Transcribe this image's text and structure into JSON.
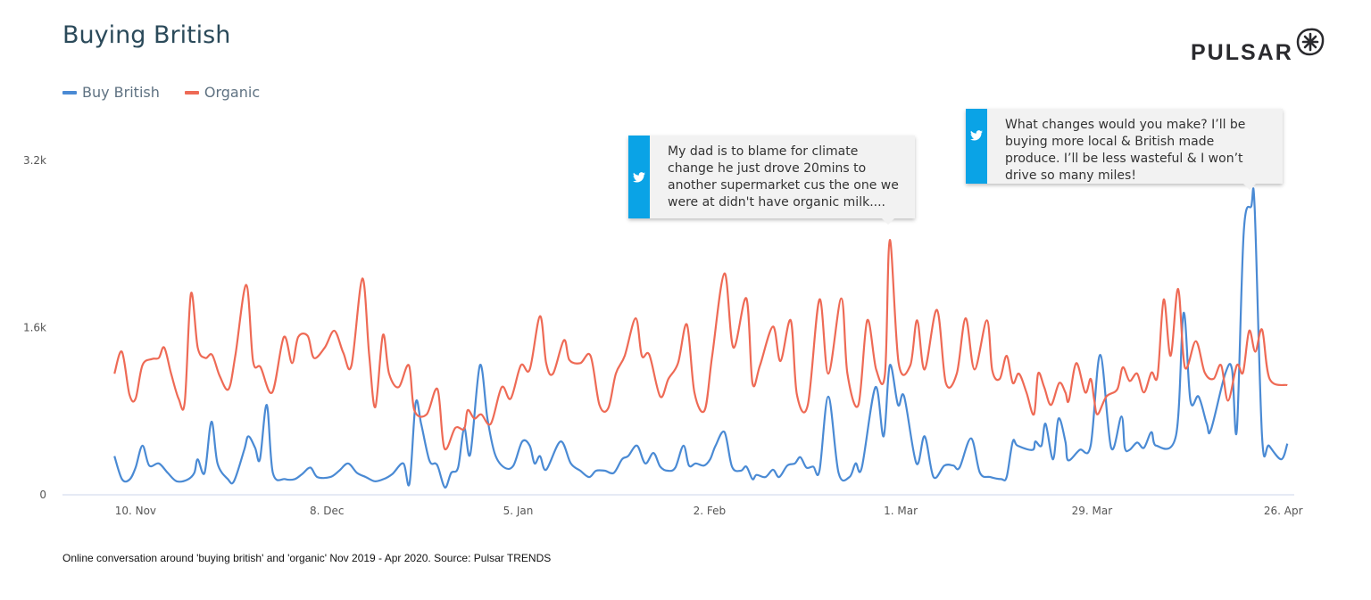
{
  "header": {
    "title": "Buying British",
    "logo_text": "PULSAR"
  },
  "legend": [
    {
      "label": "Buy British",
      "color": "#4a8ad4"
    },
    {
      "label": "Organic",
      "color": "#ee6a55"
    }
  ],
  "tooltips": [
    {
      "icon": "twitter-icon",
      "text": "My dad is to blame for climate change he just drove 20mins to another supermarket cus the one we were at didn't have organic milk...."
    },
    {
      "icon": "twitter-icon",
      "text": "What changes would you make? I’ll be buying more local & British made produce. I’ll be less wasteful & I won’t drive so many miles!"
    }
  ],
  "caption": "Online conversation around 'buying british' and 'organic'  Nov 2019 - Apr 2020. Source: Pulsar TRENDS",
  "chart_data": {
    "type": "line",
    "title": "Buying British",
    "xlabel": "",
    "ylabel": "",
    "x_unit": "days since 10 Nov 2019",
    "xlim": [
      -10.7,
      169.6
    ],
    "ylim": [
      0,
      3200
    ],
    "grid": false,
    "legend_position": "top-left",
    "x_ticks": [
      {
        "value": 0,
        "label": "10. Nov"
      },
      {
        "value": 28,
        "label": "8. Dec"
      },
      {
        "value": 56,
        "label": "5. Jan"
      },
      {
        "value": 84,
        "label": "2. Feb"
      },
      {
        "value": 112,
        "label": "1. Mar"
      },
      {
        "value": 140,
        "label": "29. Mar"
      },
      {
        "value": 168,
        "label": "26. Apr"
      }
    ],
    "y_ticks": [
      {
        "value": 0,
        "label": "0"
      },
      {
        "value": 1600,
        "label": "1.6k"
      },
      {
        "value": 3200,
        "label": "3.2k"
      }
    ],
    "series": [
      {
        "name": "Buy British",
        "color": "#4a8ad4",
        "points": [
          [
            -3.1,
            370
          ],
          [
            -2.0,
            150
          ],
          [
            -0.9,
            145
          ],
          [
            0,
            260
          ],
          [
            1.0,
            470
          ],
          [
            2.0,
            280
          ],
          [
            3.4,
            300
          ],
          [
            4.7,
            210
          ],
          [
            6.0,
            130
          ],
          [
            7.6,
            145
          ],
          [
            8.6,
            210
          ],
          [
            9.1,
            340
          ],
          [
            10.1,
            210
          ],
          [
            11.1,
            700
          ],
          [
            12.0,
            300
          ],
          [
            13.5,
            150
          ],
          [
            14.4,
            130
          ],
          [
            15.9,
            430
          ],
          [
            16.5,
            560
          ],
          [
            17.5,
            450
          ],
          [
            18.2,
            340
          ],
          [
            19.2,
            860
          ],
          [
            20.1,
            210
          ],
          [
            21.9,
            150
          ],
          [
            23.3,
            150
          ],
          [
            24.4,
            200
          ],
          [
            25.6,
            260
          ],
          [
            26.6,
            170
          ],
          [
            28.5,
            170
          ],
          [
            29.8,
            230
          ],
          [
            31.1,
            300
          ],
          [
            32.4,
            210
          ],
          [
            33.7,
            170
          ],
          [
            35.0,
            130
          ],
          [
            36.3,
            150
          ],
          [
            37.6,
            200
          ],
          [
            39.2,
            300
          ],
          [
            40.1,
            110
          ],
          [
            41.0,
            880
          ],
          [
            41.8,
            680
          ],
          [
            43.0,
            330
          ],
          [
            43.9,
            300
          ],
          [
            44.3,
            260
          ],
          [
            45.3,
            70
          ],
          [
            46.2,
            210
          ],
          [
            47.2,
            260
          ],
          [
            48.1,
            640
          ],
          [
            49.0,
            390
          ],
          [
            50.4,
            1240
          ],
          [
            51.5,
            730
          ],
          [
            52.6,
            390
          ],
          [
            54.0,
            260
          ],
          [
            55.3,
            280
          ],
          [
            56.6,
            510
          ],
          [
            57.7,
            470
          ],
          [
            58.4,
            300
          ],
          [
            59.2,
            370
          ],
          [
            60.1,
            240
          ],
          [
            62.2,
            510
          ],
          [
            63.7,
            300
          ],
          [
            65.1,
            230
          ],
          [
            66.4,
            170
          ],
          [
            67.4,
            230
          ],
          [
            68.7,
            230
          ],
          [
            70.0,
            210
          ],
          [
            71.2,
            340
          ],
          [
            72.1,
            370
          ],
          [
            73.4,
            470
          ],
          [
            74.6,
            300
          ],
          [
            75.8,
            400
          ],
          [
            76.8,
            270
          ],
          [
            77.9,
            230
          ],
          [
            79.0,
            260
          ],
          [
            80.2,
            470
          ],
          [
            81.0,
            280
          ],
          [
            82.0,
            300
          ],
          [
            83.2,
            280
          ],
          [
            84.1,
            340
          ],
          [
            84.9,
            470
          ],
          [
            86.2,
            600
          ],
          [
            87.3,
            270
          ],
          [
            88.6,
            230
          ],
          [
            89.4,
            270
          ],
          [
            90.3,
            150
          ],
          [
            90.9,
            190
          ],
          [
            92.2,
            170
          ],
          [
            93.3,
            240
          ],
          [
            94.2,
            170
          ],
          [
            95.4,
            280
          ],
          [
            96.5,
            300
          ],
          [
            97.3,
            360
          ],
          [
            98.2,
            260
          ],
          [
            99.2,
            270
          ],
          [
            100.1,
            230
          ],
          [
            101.4,
            940
          ],
          [
            102.9,
            210
          ],
          [
            104.5,
            170
          ],
          [
            105.4,
            300
          ],
          [
            106.3,
            260
          ],
          [
            108.3,
            1030
          ],
          [
            109.5,
            560
          ],
          [
            110.4,
            1240
          ],
          [
            111.6,
            860
          ],
          [
            112.5,
            940
          ],
          [
            114.3,
            300
          ],
          [
            115.5,
            560
          ],
          [
            116.8,
            170
          ],
          [
            118.4,
            280
          ],
          [
            119.7,
            280
          ],
          [
            120.6,
            260
          ],
          [
            122.3,
            540
          ],
          [
            123.6,
            210
          ],
          [
            125.1,
            170
          ],
          [
            126.7,
            150
          ],
          [
            127.5,
            170
          ],
          [
            128.4,
            510
          ],
          [
            129.1,
            470
          ],
          [
            131.3,
            430
          ],
          [
            131.7,
            510
          ],
          [
            132.6,
            470
          ],
          [
            133.2,
            680
          ],
          [
            134.3,
            340
          ],
          [
            135.1,
            730
          ],
          [
            136.1,
            510
          ],
          [
            136.5,
            330
          ],
          [
            138.2,
            430
          ],
          [
            139.8,
            470
          ],
          [
            141.2,
            1340
          ],
          [
            142.8,
            450
          ],
          [
            144.3,
            750
          ],
          [
            144.8,
            450
          ],
          [
            145.5,
            430
          ],
          [
            146.6,
            500
          ],
          [
            147.6,
            450
          ],
          [
            148.7,
            600
          ],
          [
            149.4,
            470
          ],
          [
            152.3,
            570
          ],
          [
            153.4,
            1740
          ],
          [
            154.4,
            900
          ],
          [
            155.6,
            940
          ],
          [
            156.8,
            680
          ],
          [
            157.4,
            620
          ],
          [
            159.5,
            1160
          ],
          [
            160.5,
            1200
          ],
          [
            161.2,
            620
          ],
          [
            162.2,
            2510
          ],
          [
            163.3,
            2760
          ],
          [
            163.8,
            2760
          ],
          [
            164.9,
            550
          ],
          [
            165.9,
            470
          ],
          [
            167.7,
            340
          ],
          [
            168.6,
            490
          ]
        ]
      },
      {
        "name": "Organic",
        "color": "#ee6a55",
        "points": [
          [
            -3.1,
            1160
          ],
          [
            -2.0,
            1370
          ],
          [
            -0.9,
            960
          ],
          [
            0,
            920
          ],
          [
            1.0,
            1240
          ],
          [
            2.4,
            1300
          ],
          [
            3.4,
            1310
          ],
          [
            4.2,
            1410
          ],
          [
            5.2,
            1160
          ],
          [
            6.3,
            920
          ],
          [
            7.2,
            890
          ],
          [
            8.1,
            1925
          ],
          [
            9.1,
            1410
          ],
          [
            10.2,
            1310
          ],
          [
            11.2,
            1340
          ],
          [
            12.3,
            1140
          ],
          [
            13.6,
            1010
          ],
          [
            14.6,
            1330
          ],
          [
            16.2,
            2010
          ],
          [
            17.2,
            1280
          ],
          [
            18.3,
            1220
          ],
          [
            20.0,
            980
          ],
          [
            21.7,
            1510
          ],
          [
            22.9,
            1260
          ],
          [
            23.8,
            1510
          ],
          [
            25.2,
            1520
          ],
          [
            26.1,
            1310
          ],
          [
            27.7,
            1410
          ],
          [
            29.1,
            1570
          ],
          [
            30.4,
            1360
          ],
          [
            31.6,
            1240
          ],
          [
            33.2,
            2070
          ],
          [
            34.2,
            1330
          ],
          [
            35.1,
            840
          ],
          [
            36.2,
            1530
          ],
          [
            37.1,
            1160
          ],
          [
            38.5,
            1030
          ],
          [
            40.0,
            1240
          ],
          [
            40.8,
            810
          ],
          [
            42.6,
            770
          ],
          [
            44.2,
            1010
          ],
          [
            45.2,
            445
          ],
          [
            46.8,
            640
          ],
          [
            48.1,
            630
          ],
          [
            48.6,
            810
          ],
          [
            49.6,
            730
          ],
          [
            50.6,
            770
          ],
          [
            52.0,
            680
          ],
          [
            53.6,
            1030
          ],
          [
            54.9,
            920
          ],
          [
            56.4,
            1240
          ],
          [
            57.7,
            1200
          ],
          [
            59.2,
            1710
          ],
          [
            60.1,
            1260
          ],
          [
            61.1,
            1160
          ],
          [
            62.7,
            1480
          ],
          [
            63.5,
            1290
          ],
          [
            65.1,
            1260
          ],
          [
            66.6,
            1330
          ],
          [
            67.9,
            860
          ],
          [
            69.2,
            830
          ],
          [
            70.3,
            1160
          ],
          [
            71.6,
            1330
          ],
          [
            73.2,
            1690
          ],
          [
            74.1,
            1330
          ],
          [
            75.2,
            1340
          ],
          [
            76.8,
            940
          ],
          [
            78.0,
            1110
          ],
          [
            79.4,
            1260
          ],
          [
            80.7,
            1630
          ],
          [
            81.8,
            980
          ],
          [
            83.3,
            810
          ],
          [
            84.4,
            1330
          ],
          [
            86.2,
            2120
          ],
          [
            87.5,
            1410
          ],
          [
            89.4,
            1880
          ],
          [
            90.3,
            1070
          ],
          [
            91.4,
            1240
          ],
          [
            93.3,
            1610
          ],
          [
            94.4,
            1280
          ],
          [
            95.9,
            1670
          ],
          [
            96.8,
            960
          ],
          [
            98.4,
            860
          ],
          [
            100.1,
            1870
          ],
          [
            101.4,
            1160
          ],
          [
            103.3,
            1880
          ],
          [
            104.2,
            1160
          ],
          [
            105.8,
            860
          ],
          [
            107.1,
            1670
          ],
          [
            108.4,
            1200
          ],
          [
            109.7,
            1160
          ],
          [
            110.4,
            2440
          ],
          [
            111.7,
            1260
          ],
          [
            113.4,
            1240
          ],
          [
            114.4,
            1670
          ],
          [
            115.5,
            1200
          ],
          [
            117.3,
            1770
          ],
          [
            118.6,
            1070
          ],
          [
            120.2,
            1160
          ],
          [
            121.5,
            1690
          ],
          [
            122.8,
            1200
          ],
          [
            124.6,
            1670
          ],
          [
            125.4,
            1190
          ],
          [
            126.5,
            1110
          ],
          [
            127.5,
            1330
          ],
          [
            128.4,
            1070
          ],
          [
            129.3,
            1160
          ],
          [
            130.4,
            980
          ],
          [
            131.5,
            770
          ],
          [
            132.1,
            1160
          ],
          [
            133.0,
            1030
          ],
          [
            134.0,
            860
          ],
          [
            135.2,
            1070
          ],
          [
            136.1,
            980
          ],
          [
            136.6,
            900
          ],
          [
            137.7,
            1260
          ],
          [
            139.0,
            980
          ],
          [
            139.8,
            1110
          ],
          [
            140.3,
            920
          ],
          [
            140.8,
            770
          ],
          [
            142.1,
            940
          ],
          [
            143.7,
            1010
          ],
          [
            144.5,
            1220
          ],
          [
            145.5,
            1090
          ],
          [
            146.6,
            1160
          ],
          [
            147.6,
            980
          ],
          [
            148.7,
            1170
          ],
          [
            149.6,
            1140
          ],
          [
            150.5,
            1870
          ],
          [
            151.5,
            1330
          ],
          [
            152.6,
            1970
          ],
          [
            153.6,
            1220
          ],
          [
            155.2,
            1470
          ],
          [
            156.5,
            1170
          ],
          [
            157.8,
            1110
          ],
          [
            158.9,
            1240
          ],
          [
            159.9,
            900
          ],
          [
            161.2,
            1240
          ],
          [
            162.1,
            1170
          ],
          [
            163.0,
            1570
          ],
          [
            163.9,
            1370
          ],
          [
            164.9,
            1580
          ],
          [
            166.0,
            1110
          ],
          [
            168.6,
            1050
          ]
        ]
      }
    ]
  }
}
